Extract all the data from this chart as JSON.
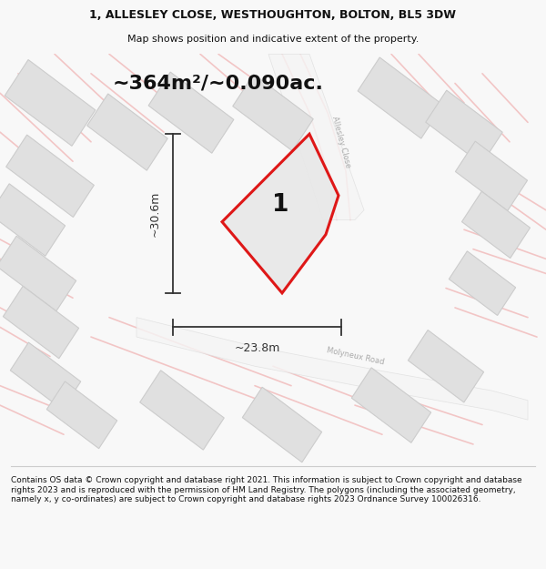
{
  "title_line1": "1, ALLESLEY CLOSE, WESTHOUGHTON, BOLTON, BL5 3DW",
  "title_line2": "Map shows position and indicative extent of the property.",
  "area_text": "~364m²/~0.090ac.",
  "label_number": "1",
  "dim_height": "~30.6m",
  "dim_width": "~23.8m",
  "footer_text": "Contains OS data © Crown copyright and database right 2021. This information is subject to Crown copyright and database rights 2023 and is reproduced with the permission of HM Land Registry. The polygons (including the associated geometry, namely x, y co-ordinates) are subject to Crown copyright and database rights 2023 Ordnance Survey 100026316.",
  "bg_color": "#f8f8f8",
  "map_bg": "#f0f0f0",
  "building_fill": "#e0e0e0",
  "building_edge": "#cccccc",
  "road_outline": "#f0b0b0",
  "road_fill": "#ffffff",
  "plot_fill": "#e8e8e8",
  "plot_edge": "#dd0000",
  "dim_color": "#333333",
  "road_label_color": "#aaaaaa"
}
